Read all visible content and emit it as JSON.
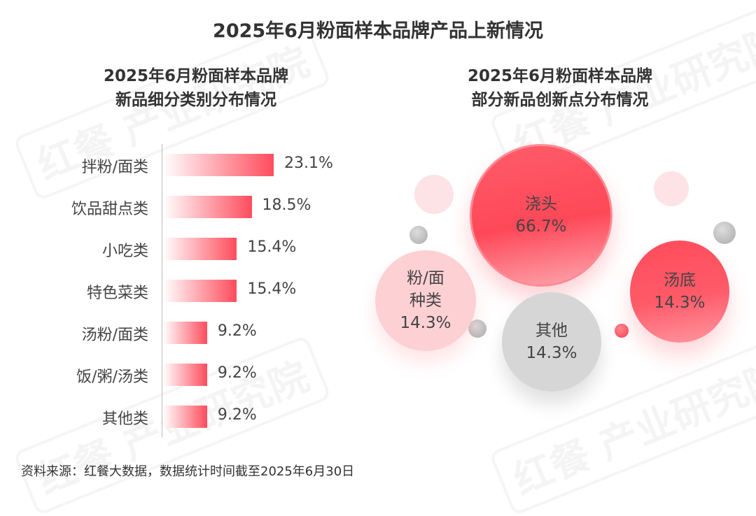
{
  "title": "2025年6月粉面样本品牌产品上新情况",
  "watermark": "红餐 产业研究院",
  "source": "资料来源：红餐大数据，数据统计时间截至2025年6月30日",
  "chart_data": [
    {
      "type": "bar",
      "orientation": "horizontal",
      "title_lines": [
        "2025年6月粉面样本品牌",
        "新品细分类别分布情况"
      ],
      "categories": [
        "拌粉/面类",
        "饮品甜点类",
        "小吃类",
        "特色菜类",
        "汤粉/面类",
        "饭/粥/汤类",
        "其他类"
      ],
      "values": [
        23.1,
        18.5,
        15.4,
        15.4,
        9.2,
        9.2,
        9.2
      ],
      "labels": [
        "23.1%",
        "18.5%",
        "15.4%",
        "15.4%",
        "9.2%",
        "9.2%",
        "9.2%"
      ],
      "unit": "%",
      "color": "#fe4c5c"
    },
    {
      "type": "bubble",
      "title_lines": [
        "2025年6月粉面样本品牌",
        "部分新品创新点分布情况"
      ],
      "items": [
        {
          "name": "浇头",
          "value": 66.7,
          "label": "66.7%",
          "color": "#fe4c5c"
        },
        {
          "name": "粉/面种类",
          "name_lines": [
            "粉/面",
            "种类"
          ],
          "value": 14.3,
          "label": "14.3%",
          "color": "#fdd0d4"
        },
        {
          "name": "其他",
          "value": 14.3,
          "label": "14.3%",
          "color": "#d6d6d6"
        },
        {
          "name": "汤底",
          "value": 14.3,
          "label": "14.3%",
          "color": "#fe4c5c"
        }
      ]
    }
  ]
}
